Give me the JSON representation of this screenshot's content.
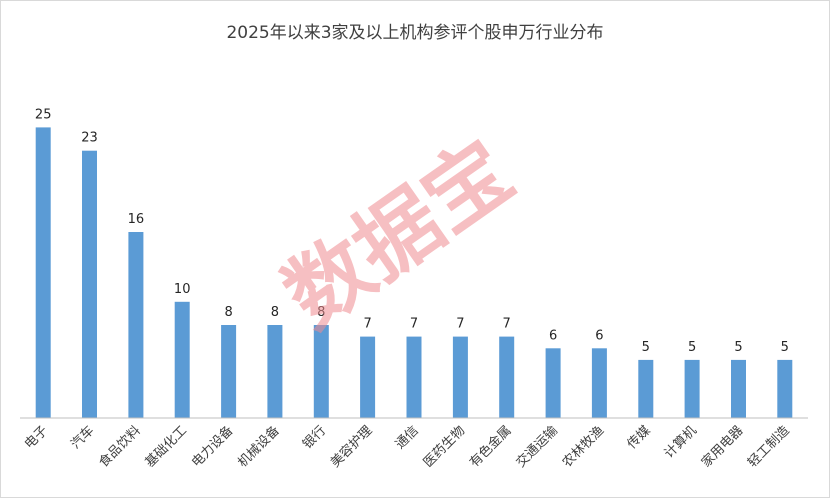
{
  "chart_data": {
    "type": "bar",
    "title": "2025年以来3家及以上机构参评个股申万行业分布",
    "categories": [
      "电子",
      "汽车",
      "食品饮料",
      "基础化工",
      "电力设备",
      "机械设备",
      "银行",
      "美容护理",
      "通信",
      "医药生物",
      "有色金属",
      "交通运输",
      "农林牧渔",
      "传媒",
      "计算机",
      "家用电器",
      "轻工制造"
    ],
    "values": [
      25,
      23,
      16,
      10,
      8,
      8,
      8,
      7,
      7,
      7,
      7,
      6,
      6,
      5,
      5,
      5,
      5
    ],
    "xlabel": "",
    "ylabel": "",
    "ylim": [
      0,
      26.5
    ],
    "grid": false,
    "legend": "none",
    "bar_color": "#5b9bd5",
    "axis_color": "#bfbfbf"
  },
  "watermark": {
    "text": "数据宝",
    "color": "#f08c91"
  }
}
